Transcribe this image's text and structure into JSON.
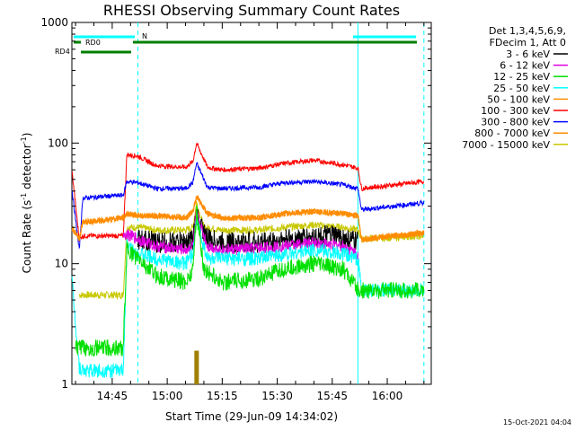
{
  "title": "RHESSI Observing Summary Count Rates",
  "xlabel": "Start Time (29-Jun-09 14:34:02)",
  "ylabel_main": "Count Rate (s",
  "ylabel_sup1": "-1",
  "ylabel_mid": " detector",
  "ylabel_sup2": "-1",
  "ylabel_end": ")",
  "footer_date": "15-Oct-2021 04:04",
  "legend_header_1": "Det 1,3,4,5,6,9,",
  "legend_header_2": "FDecim 1, Att 0",
  "flags": {
    "n_label": "N",
    "rd0_label": "RD0",
    "rd4_label": "RD4",
    "n_color": "#00ffff",
    "rd_color": "#008000"
  },
  "chart_data": {
    "type": "line",
    "xlabel": "Start Time (29-Jun-09 14:34:02)",
    "ylabel": "Count Rate (s-1 detector-1)",
    "x_unit": "minutes after 14:30",
    "x_ticks": [
      {
        "t": 15,
        "label": "14:45"
      },
      {
        "t": 30,
        "label": "15:00"
      },
      {
        "t": 45,
        "label": "15:15"
      },
      {
        "t": 60,
        "label": "15:30"
      },
      {
        "t": 75,
        "label": "15:45"
      },
      {
        "t": 90,
        "label": "16:00"
      }
    ],
    "xlim": [
      4,
      102
    ],
    "y_scale": "log",
    "ylim": [
      1,
      1000
    ],
    "y_ticks": [
      {
        "v": 1,
        "label": "1"
      },
      {
        "v": 10,
        "label": "10"
      },
      {
        "v": 100,
        "label": "100"
      },
      {
        "v": 1000,
        "label": "1000"
      }
    ],
    "night_boundaries": [
      {
        "t": 22,
        "style": "dashed"
      },
      {
        "t": 82,
        "style": "solid"
      },
      {
        "t": 100,
        "style": "dashed"
      }
    ],
    "series": [
      {
        "name": "3 - 6 keV",
        "color": "#000000",
        "t": [
          22,
          27,
          35,
          37,
          38,
          41,
          45,
          55,
          65,
          75,
          82
        ],
        "v": [
          16,
          15,
          15,
          16,
          25,
          16,
          15,
          15,
          16,
          17,
          15
        ]
      },
      {
        "name": "6 - 12 keV",
        "color": "#e000e0",
        "t": [
          18,
          22,
          27,
          35,
          37,
          38,
          41,
          45,
          55,
          62,
          70,
          78,
          82
        ],
        "v": [
          18,
          16,
          14,
          13,
          14,
          26,
          14,
          13,
          13.5,
          14,
          15,
          14,
          12
        ]
      },
      {
        "name": "12 - 25 keV",
        "color": "#00e000",
        "t": [
          5,
          18,
          19,
          22,
          27,
          35,
          37,
          38,
          40,
          45,
          55,
          62,
          70,
          78,
          82,
          83,
          100
        ],
        "v": [
          2,
          2,
          13,
          11,
          8,
          7,
          9,
          28,
          9,
          7,
          7.5,
          9,
          10,
          9,
          6,
          6,
          6
        ]
      },
      {
        "name": "25 - 50 keV",
        "color": "#00ffff",
        "t": [
          4,
          6,
          7,
          18,
          19,
          22,
          27,
          35,
          37,
          38,
          41,
          45,
          55,
          62,
          70,
          78,
          82,
          83,
          100
        ],
        "v": [
          7.5,
          1.4,
          1.3,
          1.3,
          14,
          12,
          11,
          10,
          12,
          23,
          11,
          11,
          11,
          12,
          13,
          12,
          11,
          6,
          6
        ]
      },
      {
        "name": "50 - 100 keV",
        "color": "#ff8c00",
        "t": [
          4,
          6,
          7,
          18,
          19,
          22,
          27,
          35,
          37,
          38,
          41,
          45,
          55,
          62,
          70,
          78,
          82,
          83,
          100
        ],
        "v": [
          20,
          16,
          22,
          24,
          26,
          25,
          25,
          24,
          27,
          36,
          26,
          24,
          24,
          26,
          27,
          26,
          25,
          16,
          18
        ]
      },
      {
        "name": "100 - 300 keV",
        "color": "#ff0000",
        "t": [
          4,
          6,
          7,
          18,
          19,
          22,
          27,
          35,
          37,
          38,
          41,
          45,
          55,
          62,
          70,
          78,
          82,
          83,
          100
        ],
        "v": [
          60,
          16,
          17,
          17,
          80,
          78,
          65,
          63,
          70,
          100,
          63,
          60,
          62,
          68,
          72,
          66,
          62,
          42,
          48
        ]
      },
      {
        "name": "300 - 800 keV",
        "color": "#0000ff",
        "t": [
          4,
          6,
          7,
          18,
          19,
          22,
          27,
          35,
          37,
          38,
          41,
          45,
          55,
          62,
          70,
          78,
          82,
          83,
          100
        ],
        "v": [
          42,
          13,
          35,
          37,
          48,
          47,
          42,
          42,
          47,
          68,
          43,
          42,
          43,
          47,
          48,
          45,
          42,
          28,
          32
        ]
      },
      {
        "name": "800 - 7000 keV",
        "color": "#ff8c00",
        "t": [
          4,
          6,
          7,
          18,
          19,
          22,
          27,
          35,
          37,
          38,
          41,
          45,
          55,
          62,
          70,
          78,
          82,
          83,
          100
        ],
        "v": [
          20,
          16,
          22,
          24,
          26,
          25,
          25,
          24,
          27,
          36,
          26,
          24,
          24,
          26,
          27,
          26,
          25,
          16,
          18
        ]
      },
      {
        "name": "7000 - 15000 keV",
        "color": "#c8c800",
        "t": [
          6,
          18,
          19,
          22,
          27,
          35,
          37,
          38,
          40,
          45,
          55,
          62,
          70,
          78,
          82,
          83,
          100
        ],
        "v": [
          5.5,
          5.5,
          20,
          20,
          19,
          19,
          20,
          32,
          20,
          19,
          19,
          20,
          21,
          20,
          19,
          16,
          17
        ]
      }
    ]
  }
}
